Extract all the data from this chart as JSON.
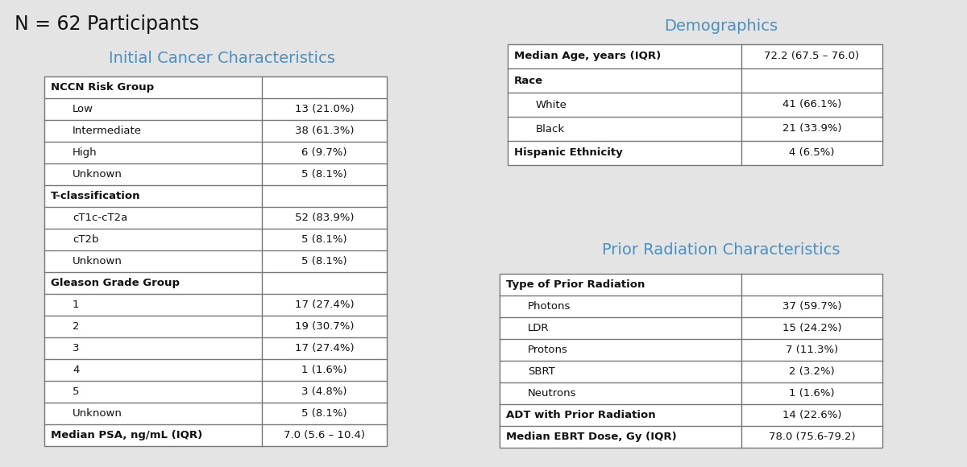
{
  "bg_color": "#e4e4e4",
  "title_color": "#4a90c4",
  "n_label": "N = 62 Participants",
  "left_title": "Initial Cancer Characteristics",
  "right_title1": "Demographics",
  "right_title2": "Prior Radiation Characteristics",
  "left_table": {
    "rows": [
      {
        "label": "NCCN Risk Group",
        "value": "",
        "bold": true,
        "indent": 0
      },
      {
        "label": "Low",
        "value": "13 (21.0%)",
        "bold": false,
        "indent": 1
      },
      {
        "label": "Intermediate",
        "value": "38 (61.3%)",
        "bold": false,
        "indent": 1
      },
      {
        "label": "High",
        "value": "6 (9.7%)",
        "bold": false,
        "indent": 1
      },
      {
        "label": "Unknown",
        "value": "5 (8.1%)",
        "bold": false,
        "indent": 1
      },
      {
        "label": "T-classification",
        "value": "",
        "bold": true,
        "indent": 0
      },
      {
        "label": "cT1c-cT2a",
        "value": "52 (83.9%)",
        "bold": false,
        "indent": 1
      },
      {
        "label": "cT2b",
        "value": "5 (8.1%)",
        "bold": false,
        "indent": 1
      },
      {
        "label": "Unknown",
        "value": "5 (8.1%)",
        "bold": false,
        "indent": 1
      },
      {
        "label": "Gleason Grade Group",
        "value": "",
        "bold": true,
        "indent": 0
      },
      {
        "label": "1",
        "value": "17 (27.4%)",
        "bold": false,
        "indent": 1
      },
      {
        "label": "2",
        "value": "19 (30.7%)",
        "bold": false,
        "indent": 1
      },
      {
        "label": "3",
        "value": "17 (27.4%)",
        "bold": false,
        "indent": 1
      },
      {
        "label": "4",
        "value": "1 (1.6%)",
        "bold": false,
        "indent": 1
      },
      {
        "label": "5",
        "value": "3 (4.8%)",
        "bold": false,
        "indent": 1
      },
      {
        "label": "Unknown",
        "value": "5 (8.1%)",
        "bold": false,
        "indent": 1
      },
      {
        "label": "Median PSA, ng/mL (IQR)",
        "value": "7.0 (5.6 – 10.4)",
        "bold": true,
        "indent": 0
      }
    ]
  },
  "demo_table": {
    "rows": [
      {
        "label": "Median Age, years (IQR)",
        "value": "72.2 (67.5 – 76.0)",
        "bold": true,
        "indent": 0
      },
      {
        "label": "Race",
        "value": "",
        "bold": true,
        "indent": 0
      },
      {
        "label": "White",
        "value": "41 (66.1%)",
        "bold": false,
        "indent": 1
      },
      {
        "label": "Black",
        "value": "21 (33.9%)",
        "bold": false,
        "indent": 1
      },
      {
        "label": "Hispanic Ethnicity",
        "value": "4 (6.5%)",
        "bold": true,
        "indent": 0
      }
    ]
  },
  "prior_table": {
    "rows": [
      {
        "label": "Type of Prior Radiation",
        "value": "",
        "bold": true,
        "indent": 0
      },
      {
        "label": "Photons",
        "value": "37 (59.7%)",
        "bold": false,
        "indent": 1
      },
      {
        "label": "LDR",
        "value": "15 (24.2%)",
        "bold": false,
        "indent": 1
      },
      {
        "label": "Protons",
        "value": "7 (11.3%)",
        "bold": false,
        "indent": 1
      },
      {
        "label": "SBRT",
        "value": "2 (3.2%)",
        "bold": false,
        "indent": 1
      },
      {
        "label": "Neutrons",
        "value": "1 (1.6%)",
        "bold": false,
        "indent": 1
      },
      {
        "label": "ADT with Prior Radiation",
        "value": "14 (22.6%)",
        "bold": true,
        "indent": 0
      },
      {
        "label": "Median EBRT Dose, Gy (IQR)",
        "value": "78.0 (75.6-79.2)",
        "bold": true,
        "indent": 0
      }
    ]
  },
  "fig_w": 12.0,
  "fig_h": 5.8,
  "dpi": 100
}
